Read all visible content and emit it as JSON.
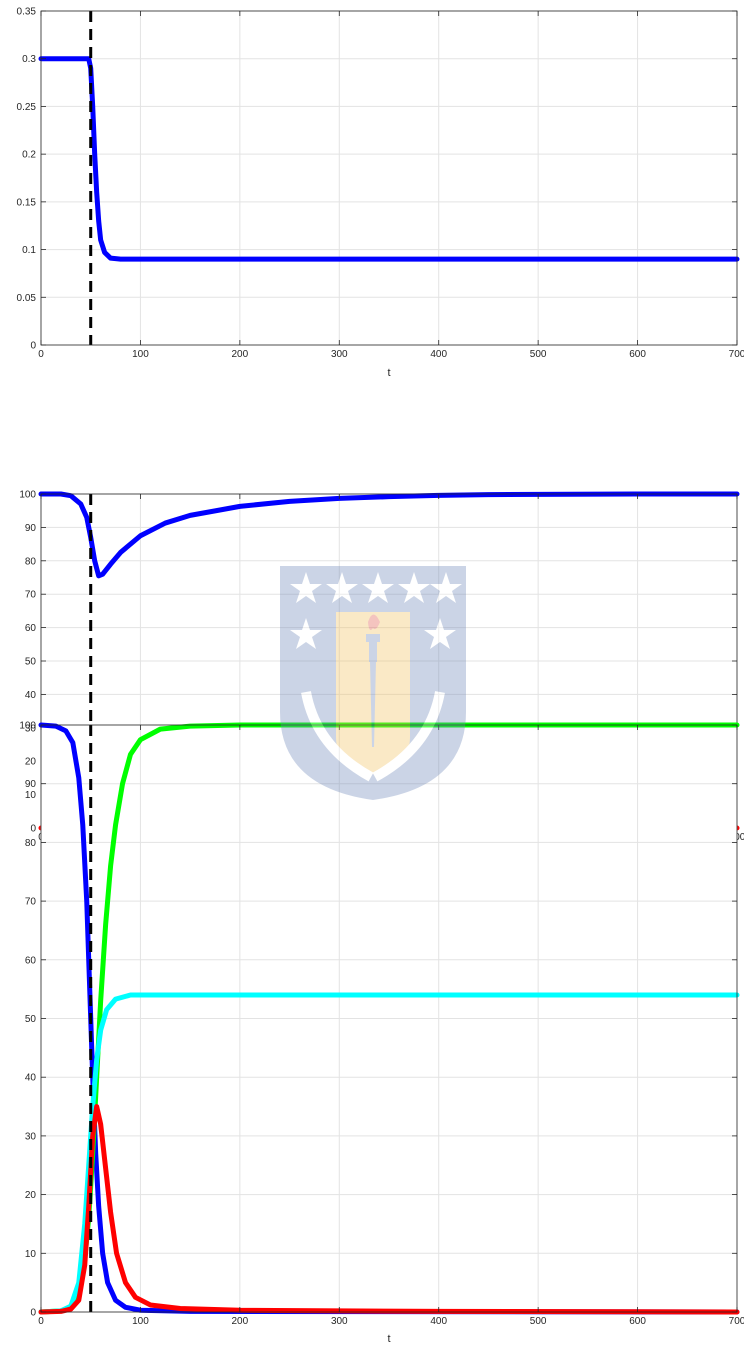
{
  "chart_data": [
    {
      "type": "line",
      "xlabel": "t",
      "ylabel": "",
      "xlim": [
        0,
        700
      ],
      "ylim": [
        0,
        0.35
      ],
      "xticks": [
        0,
        100,
        200,
        300,
        400,
        500,
        600,
        700
      ],
      "yticks": [
        0,
        0.05,
        0.1,
        0.15,
        0.2,
        0.25,
        0.3,
        0.35
      ],
      "grid": true,
      "vline_x": 50,
      "series": [
        {
          "color": "#0000ff",
          "points": [
            [
              0,
              0.3
            ],
            [
              48,
              0.3
            ],
            [
              50,
              0.29
            ],
            [
              52,
              0.25
            ],
            [
              54,
              0.2
            ],
            [
              56,
              0.16
            ],
            [
              58,
              0.13
            ],
            [
              60,
              0.11
            ],
            [
              64,
              0.097
            ],
            [
              70,
              0.091
            ],
            [
              80,
              0.09
            ],
            [
              100,
              0.09
            ],
            [
              700,
              0.09
            ]
          ]
        }
      ]
    },
    {
      "type": "line",
      "xlabel": "t",
      "ylabel": "",
      "xlim": [
        0,
        700
      ],
      "ylim": [
        0,
        100
      ],
      "xticks": [
        0,
        100,
        200,
        300,
        400,
        500,
        600,
        700
      ],
      "yticks": [
        0,
        10,
        20,
        30,
        40,
        50,
        60,
        70,
        80,
        90,
        100
      ],
      "grid": true,
      "vline_x": 50,
      "series": [
        {
          "color": "#0000ff",
          "points": [
            [
              0,
              100
            ],
            [
              20,
              100
            ],
            [
              30,
              99.5
            ],
            [
              40,
              97
            ],
            [
              46,
              93
            ],
            [
              50,
              87
            ],
            [
              54,
              80
            ],
            [
              58,
              75.5
            ],
            [
              62,
              76
            ],
            [
              70,
              79
            ],
            [
              80,
              82.5
            ],
            [
              100,
              87.5
            ],
            [
              125,
              91.3
            ],
            [
              150,
              93.6
            ],
            [
              200,
              96.3
            ],
            [
              250,
              97.8
            ],
            [
              300,
              98.7
            ],
            [
              350,
              99.2
            ],
            [
              400,
              99.6
            ],
            [
              450,
              99.8
            ],
            [
              500,
              99.9
            ],
            [
              600,
              100
            ],
            [
              700,
              100
            ]
          ]
        },
        {
          "color": "#ff0000",
          "points": [
            [
              0,
              0
            ],
            [
              20,
              0
            ],
            [
              30,
              0.5
            ],
            [
              40,
              3
            ],
            [
              46,
              7
            ],
            [
              50,
              13
            ],
            [
              54,
              20
            ],
            [
              58,
              24.5
            ],
            [
              62,
              24
            ],
            [
              70,
              21
            ],
            [
              80,
              17.5
            ],
            [
              100,
              12.5
            ],
            [
              125,
              8.7
            ],
            [
              150,
              6.4
            ],
            [
              200,
              3.7
            ],
            [
              250,
              2.2
            ],
            [
              300,
              1.3
            ],
            [
              350,
              0.8
            ],
            [
              400,
              0.4
            ],
            [
              450,
              0.2
            ],
            [
              500,
              0.1
            ],
            [
              600,
              0
            ],
            [
              700,
              0
            ]
          ]
        }
      ]
    },
    {
      "type": "line",
      "xlabel": "t",
      "ylabel": "",
      "xlim": [
        0,
        700
      ],
      "ylim": [
        0,
        100
      ],
      "xticks": [
        0,
        100,
        200,
        300,
        400,
        500,
        600,
        700
      ],
      "yticks": [
        0,
        10,
        20,
        30,
        40,
        50,
        60,
        70,
        80,
        90,
        100
      ],
      "grid": true,
      "vline_x": 50,
      "series": [
        {
          "color": "#0000ff",
          "points": [
            [
              0,
              100
            ],
            [
              15,
              99.8
            ],
            [
              25,
              99
            ],
            [
              32,
              97
            ],
            [
              38,
              91
            ],
            [
              42,
              83
            ],
            [
              46,
              70
            ],
            [
              49,
              55
            ],
            [
              52,
              40
            ],
            [
              55,
              27
            ],
            [
              58,
              18
            ],
            [
              62,
              10
            ],
            [
              67,
              5
            ],
            [
              75,
              2
            ],
            [
              85,
              0.8
            ],
            [
              100,
              0.3
            ],
            [
              150,
              0.1
            ],
            [
              700,
              0
            ]
          ]
        },
        {
          "color": "#00ff00",
          "points": [
            [
              0,
              0
            ],
            [
              20,
              0.2
            ],
            [
              30,
              0.8
            ],
            [
              38,
              3
            ],
            [
              44,
              9
            ],
            [
              48,
              16
            ],
            [
              52,
              27
            ],
            [
              56,
              40
            ],
            [
              60,
              53
            ],
            [
              65,
              66
            ],
            [
              70,
              76
            ],
            [
              75,
              83
            ],
            [
              82,
              90
            ],
            [
              90,
              95
            ],
            [
              100,
              97.5
            ],
            [
              120,
              99.3
            ],
            [
              150,
              99.8
            ],
            [
              200,
              100
            ],
            [
              700,
              100
            ]
          ]
        },
        {
          "color": "#00ffff",
          "points": [
            [
              0,
              0
            ],
            [
              20,
              0.2
            ],
            [
              30,
              1
            ],
            [
              38,
              5
            ],
            [
              44,
              15
            ],
            [
              48,
              25
            ],
            [
              52,
              35
            ],
            [
              56,
              43
            ],
            [
              60,
              48
            ],
            [
              66,
              51.5
            ],
            [
              75,
              53.3
            ],
            [
              90,
              54
            ],
            [
              700,
              54
            ]
          ]
        },
        {
          "color": "#ff0000",
          "points": [
            [
              0,
              0
            ],
            [
              20,
              0.1
            ],
            [
              30,
              0.5
            ],
            [
              38,
              2
            ],
            [
              44,
              8
            ],
            [
              48,
              18
            ],
            [
              52,
              30
            ],
            [
              56,
              35
            ],
            [
              60,
              32
            ],
            [
              64,
              26
            ],
            [
              70,
              17
            ],
            [
              76,
              10
            ],
            [
              85,
              5
            ],
            [
              95,
              2.5
            ],
            [
              110,
              1.2
            ],
            [
              140,
              0.6
            ],
            [
              200,
              0.3
            ],
            [
              400,
              0.1
            ],
            [
              700,
              0
            ]
          ]
        }
      ]
    }
  ]
}
